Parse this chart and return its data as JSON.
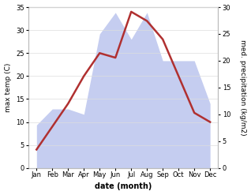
{
  "months": [
    "Jan",
    "Feb",
    "Mar",
    "Apr",
    "May",
    "Jun",
    "Jul",
    "Aug",
    "Sep",
    "Oct",
    "Nov",
    "Dec"
  ],
  "temperature": [
    4,
    9,
    14,
    20,
    25,
    24,
    34,
    32,
    28,
    20,
    12,
    10
  ],
  "precipitation": [
    8,
    11,
    11,
    10,
    25,
    29,
    24,
    29,
    20,
    20,
    20,
    12
  ],
  "temp_ylim": [
    0,
    35
  ],
  "precip_ylim": [
    0,
    30
  ],
  "temp_color": "#b03030",
  "precip_fill_color": "#c5cdf0",
  "xlabel": "date (month)",
  "ylabel_left": "max temp (C)",
  "ylabel_right": "med. precipitation (kg/m2)",
  "figsize": [
    3.18,
    2.47
  ],
  "dpi": 100
}
